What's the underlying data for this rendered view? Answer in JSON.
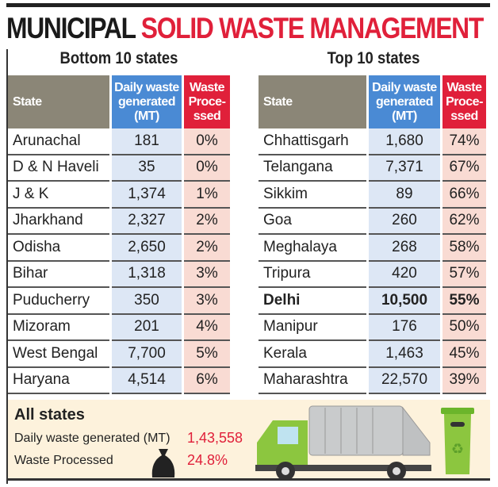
{
  "title": {
    "part1": "MUNICIPAL",
    "part2": "SOLID WASTE MANAGEMENT"
  },
  "headers": {
    "state": "State",
    "daily": "Daily waste generated (MT)",
    "processed": "Waste Proce-ssed"
  },
  "bottom10": {
    "title": "Bottom 10 states",
    "rows": [
      [
        "Arunachal",
        "181",
        "0%"
      ],
      [
        "D & N Haveli",
        "35",
        "0%"
      ],
      [
        "J & K",
        "1,374",
        "1%"
      ],
      [
        "Jharkhand",
        "2,327",
        "2%"
      ],
      [
        "Odisha",
        "2,650",
        "2%"
      ],
      [
        "Bihar",
        "1,318",
        "3%"
      ],
      [
        "Puducherry",
        "350",
        "3%"
      ],
      [
        "Mizoram",
        "201",
        "4%"
      ],
      [
        "West Bengal",
        "7,700",
        "5%"
      ],
      [
        "Haryana",
        "4,514",
        "6%"
      ]
    ]
  },
  "top10": {
    "title": "Top 10 states",
    "rows": [
      [
        "Chhattisgarh",
        "1,680",
        "74%"
      ],
      [
        "Telangana",
        "7,371",
        "67%"
      ],
      [
        "Sikkim",
        "89",
        "66%"
      ],
      [
        "Goa",
        "260",
        "62%"
      ],
      [
        "Meghalaya",
        "268",
        "58%"
      ],
      [
        "Tripura",
        "420",
        "57%"
      ],
      [
        "Delhi",
        "10,500",
        "55%"
      ],
      [
        "Manipur",
        "176",
        "50%"
      ],
      [
        "Kerala",
        "1,463",
        "45%"
      ],
      [
        "Maharashtra",
        "22,570",
        "39%"
      ]
    ],
    "bold_row": "Delhi"
  },
  "all_states": {
    "title": "All states",
    "daily_label": "Daily waste generated (MT)",
    "daily_value": "1,43,558",
    "processed_label": "Waste Processed",
    "processed_value": "24.8%"
  }
}
